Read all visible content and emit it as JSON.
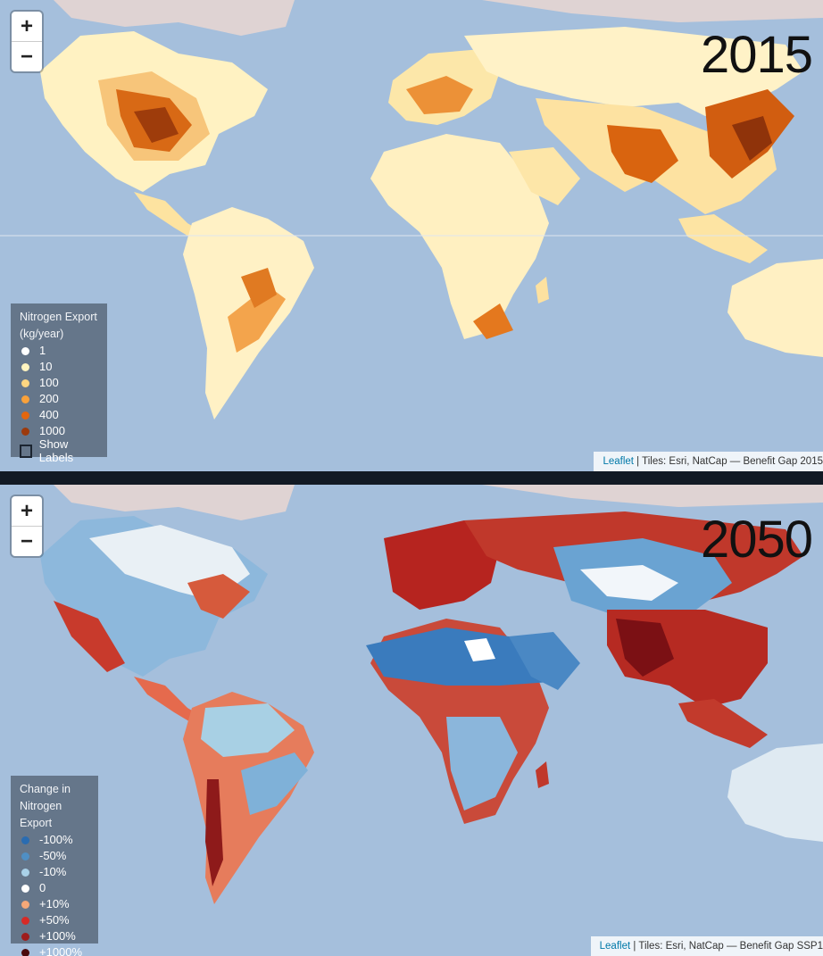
{
  "top_map": {
    "year": "2015",
    "zoom": {
      "in": "+",
      "out": "−"
    },
    "legend": {
      "title_line1": "Nitrogen Export",
      "title_line2": "(kg/year)",
      "items": [
        {
          "label": "1",
          "color": "#ffffff"
        },
        {
          "label": "10",
          "color": "#fff4c0"
        },
        {
          "label": "100",
          "color": "#fdd681"
        },
        {
          "label": "200",
          "color": "#f9a13a"
        },
        {
          "label": "400",
          "color": "#e2660f"
        },
        {
          "label": "1000",
          "color": "#9c3a0c"
        }
      ],
      "show_labels": "Show Labels"
    },
    "attribution": {
      "link": "Leaflet",
      "text": " | Tiles: Esri, NatCap — Benefit Gap 2015"
    }
  },
  "bottom_map": {
    "year": "2050",
    "zoom": {
      "in": "+",
      "out": "−"
    },
    "legend": {
      "title_line1": "Change in",
      "title_line2": "Nitrogen Export",
      "items": [
        {
          "label": "-100%",
          "color": "#2a6cb1"
        },
        {
          "label": "-50%",
          "color": "#4f8fc4"
        },
        {
          "label": "-10%",
          "color": "#a9d1e8"
        },
        {
          "label": "0",
          "color": "#ffffff"
        },
        {
          "label": "+10%",
          "color": "#f5a878"
        },
        {
          "label": "+50%",
          "color": "#d62a26"
        },
        {
          "label": "+100%",
          "color": "#9e1c1c"
        },
        {
          "label": "+1000%",
          "color": "#4a0a0c"
        }
      ]
    },
    "attribution": {
      "link": "Leaflet",
      "text": " | Tiles: Esri, NatCap — Benefit Gap SSP1"
    }
  }
}
